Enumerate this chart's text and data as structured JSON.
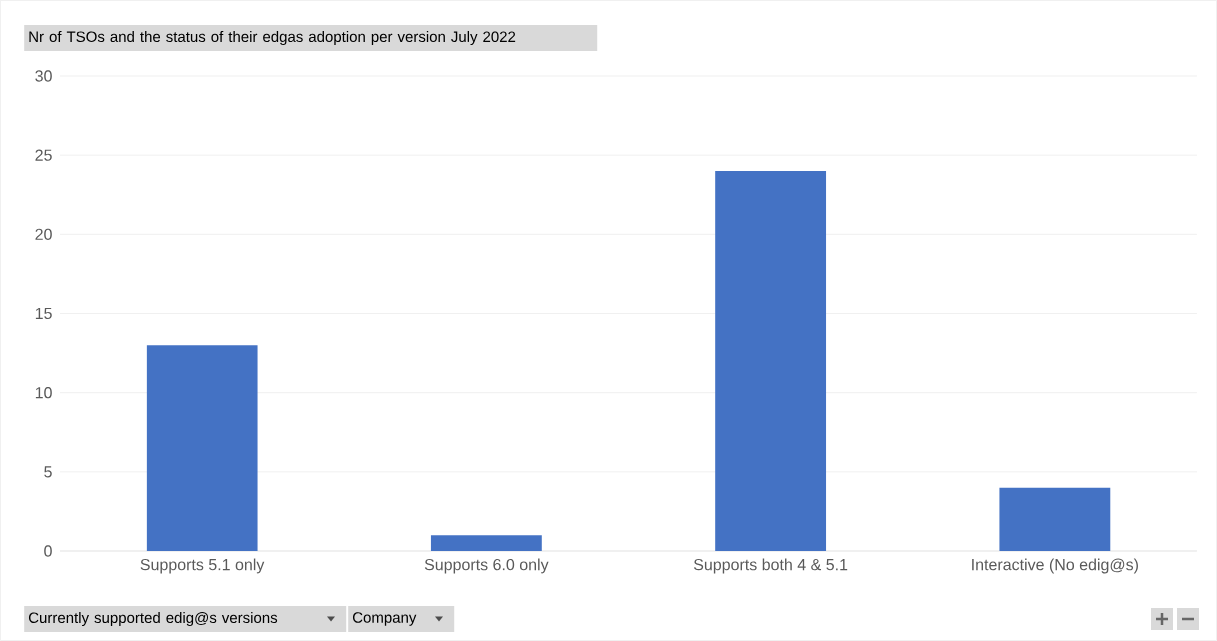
{
  "chart_data": {
    "type": "bar",
    "title": "Nr of TSOs and the status of their edgas adoption per version July 2022",
    "categories": [
      "Supports 5.1 only",
      "Supports 6.0 only",
      "Supports both 4 & 5.1",
      "Interactive (No edig@s)"
    ],
    "values": [
      13,
      1,
      24,
      4
    ],
    "color": "#4472c4",
    "ylim": [
      0,
      30
    ],
    "yticks": [
      0,
      5,
      10,
      15,
      20,
      25,
      30
    ],
    "grid": "y",
    "annotations": [
      "Currently supported edig@s versions",
      "Company"
    ]
  }
}
